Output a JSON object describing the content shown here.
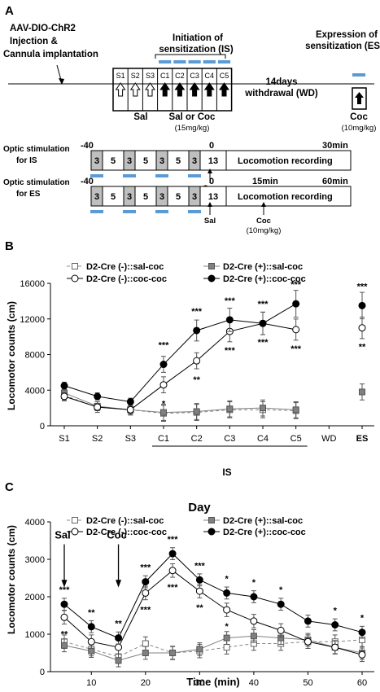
{
  "panelA": {
    "label": "A",
    "aav1": "AAV-DIO-ChR2",
    "aav2": "Injection &",
    "aav3": "Cannula implantation",
    "is1": "Initiation of",
    "is2": "sensitization (IS)",
    "wd1": "14days",
    "wd2": "withdrawal (WD)",
    "es1": "Expression of",
    "es2": "sensitization (ES)",
    "days": [
      "S1",
      "S2",
      "S3",
      "C1",
      "C2",
      "C3",
      "C4",
      "C5"
    ],
    "sal": "Sal",
    "salcoc": "Sal or Coc",
    "dose15": "(15mg/kg)",
    "coc": "Coc",
    "dose10": "(10mg/kg)",
    "opt_is1": "Optic stimulation",
    "opt_is2": "for IS",
    "opt_es1": "Optic stimulation",
    "opt_es2": "for ES",
    "t_neg40": "-40",
    "t_0": "0",
    "t_30": "30min",
    "t_15": "15min",
    "t_60": "60min",
    "segments": [
      "3",
      "5",
      "3",
      "5",
      "3",
      "5",
      "3",
      "13"
    ],
    "locorec": "Locomotion recording"
  },
  "chart_data": [
    {
      "panel": "B",
      "type": "line",
      "ylabel": "Locomotor counts (cm)",
      "xlabel": "",
      "categories": [
        "S1",
        "S2",
        "S3",
        "C1",
        "C2",
        "C3",
        "C4",
        "C5",
        "WD",
        "ES"
      ],
      "bracket_label": "IS",
      "ylim": [
        0,
        16000
      ],
      "yticks": [
        "0",
        "4000",
        "8000",
        "12000",
        "16000"
      ],
      "series": [
        {
          "name": "D2-Cre (-)::sal-coc",
          "values": [
            3400,
            2100,
            1800,
            1400,
            1500,
            1800,
            1800,
            1700,
            null,
            null
          ]
        },
        {
          "name": "D2-Cre (+)::sal-coc",
          "values": [
            3700,
            2200,
            1800,
            1500,
            1600,
            1900,
            2000,
            1800,
            null,
            3800
          ]
        },
        {
          "name": "D2-Cre (-)::coc-coc",
          "values": [
            3300,
            2100,
            1800,
            4600,
            7300,
            10600,
            11500,
            10800,
            null,
            11000
          ]
        },
        {
          "name": "D2-Cre (+)::coc-coc",
          "values": [
            4500,
            3300,
            2700,
            6900,
            10700,
            11900,
            11500,
            13700,
            null,
            13500
          ]
        }
      ],
      "annotations": [
        {
          "cat": "C1",
          "above": "***",
          "below": "*"
        },
        {
          "cat": "C2",
          "above": "***",
          "below": "**"
        },
        {
          "cat": "C3",
          "above": "***",
          "below": "***"
        },
        {
          "cat": "C4",
          "above": "***",
          "below": "***"
        },
        {
          "cat": "C5",
          "above": "***",
          "below": "***"
        },
        {
          "cat": "ES",
          "above": "***",
          "below": "**"
        }
      ]
    },
    {
      "panel": "C",
      "type": "line",
      "title": "Day",
      "xlabel": "Time (min)",
      "ylabel": "Locomotor counts (cm)",
      "x": [
        5,
        10,
        15,
        20,
        25,
        30,
        35,
        40,
        45,
        50,
        55,
        60
      ],
      "xlim": [
        3,
        62
      ],
      "xticks": [
        "10",
        "20",
        "30",
        "40",
        "50",
        "60"
      ],
      "ylim": [
        0,
        4000
      ],
      "yticks": [
        "0",
        "1000",
        "2000",
        "3000",
        "4000"
      ],
      "series": [
        {
          "name": "D2-Cre (-)::sal-coc",
          "values": [
            800,
            600,
            400,
            750,
            500,
            550,
            650,
            750,
            750,
            800,
            800,
            850
          ]
        },
        {
          "name": "D2-Cre (+)::sal-coc",
          "values": [
            700,
            550,
            300,
            500,
            500,
            600,
            900,
            950,
            900,
            850,
            650,
            500
          ]
        },
        {
          "name": "D2-Cre (-)::coc-coc",
          "values": [
            1450,
            800,
            650,
            2100,
            2700,
            2150,
            1650,
            1350,
            1100,
            800,
            650,
            450
          ]
        },
        {
          "name": "D2-Cre (+)::coc-coc",
          "values": [
            1800,
            1200,
            900,
            2400,
            3150,
            2450,
            2100,
            2000,
            1800,
            1350,
            1250,
            1050
          ]
        }
      ],
      "annotations": [
        {
          "x": 5,
          "above": "***",
          "below": "**"
        },
        {
          "x": 10,
          "above": "**"
        },
        {
          "x": 15,
          "above": "**"
        },
        {
          "x": 20,
          "above": "***",
          "below": "***"
        },
        {
          "x": 25,
          "above": "***",
          "below": "***"
        },
        {
          "x": 30,
          "above": "***",
          "below": "**"
        },
        {
          "x": 35,
          "above": "*",
          "below": "*"
        },
        {
          "x": 40,
          "above": "*"
        },
        {
          "x": 45,
          "above": "*"
        },
        {
          "x": 55,
          "above": "*"
        },
        {
          "x": 60,
          "above": "*"
        }
      ],
      "arrows": [
        {
          "label": "Sal",
          "x": 5
        },
        {
          "label": "Coc",
          "x": 15
        }
      ]
    }
  ],
  "panelB_label": "B",
  "panelC_label": "C"
}
